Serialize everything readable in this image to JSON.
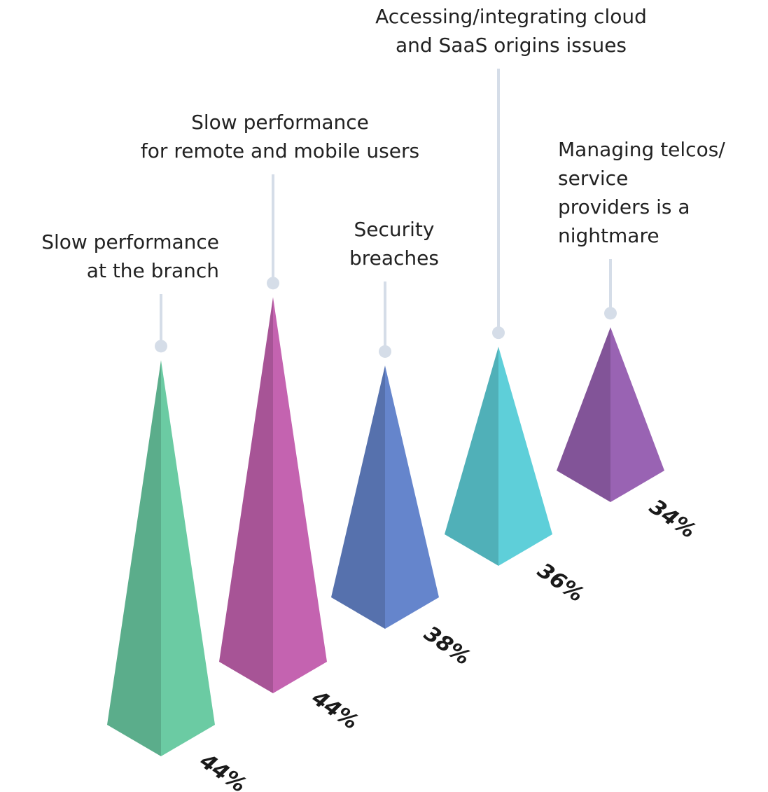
{
  "chart_data": {
    "type": "pyramid",
    "categories": [
      [
        "Slow performance",
        "at the branch"
      ],
      [
        "Slow performance",
        "for remote and mobile users"
      ],
      [
        "Security",
        "breaches"
      ],
      [
        "Accessing/integrating cloud",
        "and SaaS origins issues"
      ],
      [
        "Managing telcos/",
        "service",
        "providers is a",
        "nightmare"
      ]
    ],
    "values": [
      44,
      44,
      38,
      36,
      34
    ],
    "value_labels": [
      "44%",
      "44%",
      "38%",
      "36%",
      "34%"
    ],
    "colors": [
      "#6bcba3",
      "#c463b0",
      "#6585cc",
      "#5ecfd9",
      "#9963b3"
    ]
  }
}
